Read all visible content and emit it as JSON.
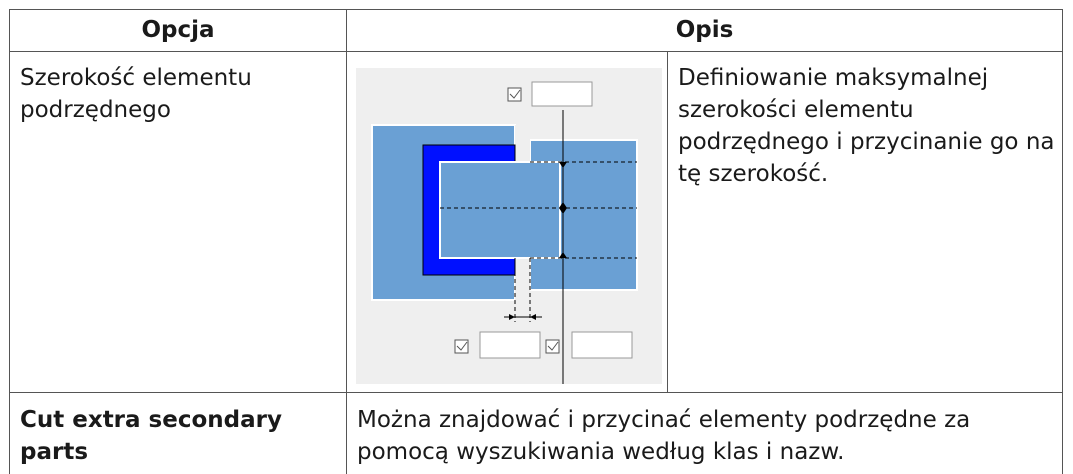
{
  "table": {
    "header": [
      "Opcja",
      "Opis"
    ],
    "rows": [
      [
        "Szerokość elementu podrzędnego",
        "Definiowanie maksymalnej szerokości elementu podrzędnego i przycinanie go na tę szerokość."
      ],
      [
        "Cut extra secondary parts",
        "Można znajdować i przycinać elementy podrzędne za pomocą wyszukiwania według klas i nazw."
      ]
    ]
  }
}
